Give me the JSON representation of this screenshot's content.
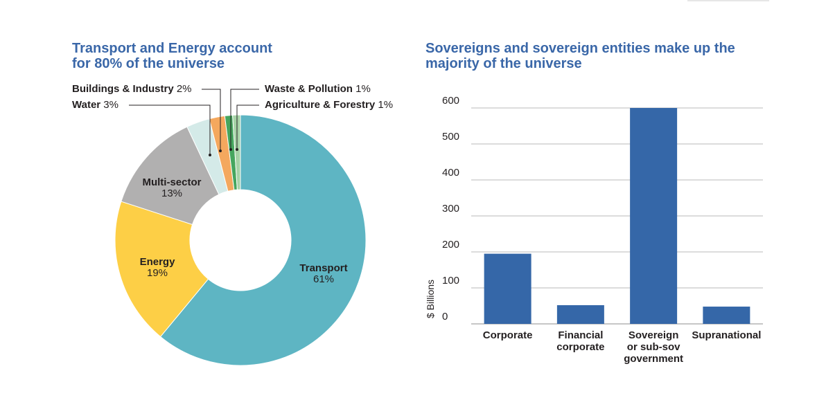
{
  "chart_data": [
    {
      "type": "pie",
      "variant": "donut",
      "title": "Transport and Energy account\nfor 80% of the universe",
      "slices": [
        {
          "name": "Transport",
          "value": 61,
          "color": "#5eb5c3"
        },
        {
          "name": "Energy",
          "value": 19,
          "color": "#fdcf46"
        },
        {
          "name": "Multi-sector",
          "value": 13,
          "color": "#b1b0b0"
        },
        {
          "name": "Water",
          "value": 3,
          "color": "#d4eae8"
        },
        {
          "name": "Buildings & Industry",
          "value": 2,
          "color": "#f4a85e"
        },
        {
          "name": "Waste & Pollution",
          "value": 1,
          "color": "#46a65e"
        },
        {
          "name": "Agriculture & Forestry",
          "value": 1,
          "color": "#a6d3a7"
        }
      ]
    },
    {
      "type": "bar",
      "title": "Sovereigns and sovereign entities make up the\nmajority of the universe",
      "categories": [
        "Corporate",
        "Financial\ncorporate",
        "Sovereign\nor sub-sov\ngovernment",
        "Supranational"
      ],
      "values": [
        195,
        52,
        600,
        48
      ],
      "ylabel": "$ Billions",
      "ylim": [
        0,
        600
      ],
      "yticks": [
        0,
        100,
        200,
        300,
        400,
        500,
        600
      ],
      "bar_color": "#3567a8",
      "grid": true
    }
  ]
}
